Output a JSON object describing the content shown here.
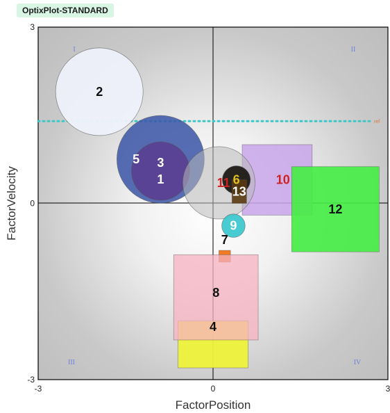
{
  "app": {
    "badge": "OptixPlot-STANDARD"
  },
  "chart_data": {
    "type": "scatter",
    "xlabel": "FactorPosition",
    "ylabel": "FactorVelocity",
    "xlim": [
      -3,
      3
    ],
    "ylim": [
      -3,
      3
    ],
    "x_ticks": [
      "-3",
      "0",
      "3"
    ],
    "y_ticks": [
      "3",
      "0",
      "-3"
    ],
    "quadrants": [
      "I",
      "II",
      "III",
      "IV"
    ],
    "reference_line": {
      "y": 1.4,
      "label": "ref",
      "color": "#3fc7c7"
    },
    "marks": [
      {
        "id": "2",
        "shape": "circle",
        "x": -1.95,
        "y": 1.9,
        "r": 0.75,
        "fill": "#eef1fb",
        "opacity": 0.95,
        "text": "#111111"
      },
      {
        "id": "5",
        "shape": "circle",
        "x": -0.9,
        "y": 0.75,
        "r": 0.75,
        "fill": "#3a55a8",
        "opacity": 0.85,
        "text": "#ffffff",
        "label_dx": -0.42
      },
      {
        "id": "3",
        "shape": "circle",
        "x": -0.9,
        "y": 0.55,
        "r": 0.5,
        "fill": "#5b3c8f",
        "opacity": 0.85,
        "text": "#ffffff",
        "label_dy": 0.14
      },
      {
        "id": "1",
        "shape": "circle",
        "x": -0.9,
        "y": 0.55,
        "r": 0.5,
        "fill": "#5b3c8f",
        "opacity": 0.0,
        "text": "#ffffff",
        "label_dy": -0.14
      },
      {
        "id": "10",
        "shape": "rect",
        "x": 1.1,
        "y": 0.4,
        "w": 1.2,
        "h": 1.2,
        "fill": "#c8a6ea",
        "opacity": 0.85,
        "text": "#cc2222",
        "label_dx": 0.1
      },
      {
        "id": "12",
        "shape": "rect",
        "x": 2.1,
        "y": -0.1,
        "w": 1.5,
        "h": 1.45,
        "fill": "#44ee44",
        "opacity": 0.9,
        "text": "#111111"
      },
      {
        "id": "11",
        "shape": "circle",
        "x": 0.1,
        "y": 0.35,
        "r": 0.62,
        "fill": "#b8b8b8",
        "opacity": 0.55,
        "text": "#cc2222",
        "label_dx": 0.08
      },
      {
        "id": "6",
        "shape": "circle",
        "x": 0.4,
        "y": 0.4,
        "r": 0.24,
        "fill": "#1e1a15",
        "opacity": 0.95,
        "text": "#e0c020"
      },
      {
        "id": "13",
        "shape": "rect",
        "x": 0.45,
        "y": 0.2,
        "w": 0.25,
        "h": 0.4,
        "fill": "#5a3a10",
        "opacity": 0.9,
        "text": "#ffffff"
      },
      {
        "id": "9",
        "shape": "circle",
        "x": 0.35,
        "y": -0.38,
        "r": 0.2,
        "fill": "#3ec8cf",
        "opacity": 0.95,
        "text": "#ffffff"
      },
      {
        "id": "7",
        "shape": "rect",
        "x": 0.2,
        "y": -0.9,
        "w": 0.2,
        "h": 0.2,
        "fill": "#f07a26",
        "opacity": 1.0,
        "text": "#111111",
        "label_dy": 0.28
      },
      {
        "id": "4",
        "shape": "rect",
        "x": 0.0,
        "y": -2.4,
        "w": 1.2,
        "h": 0.8,
        "fill": "#eef23a",
        "opacity": 0.95,
        "text": "#111111",
        "label_dy": 0.3
      },
      {
        "id": "8",
        "shape": "rect",
        "x": 0.05,
        "y": -1.6,
        "w": 1.45,
        "h": 1.45,
        "fill": "#f6b2c0",
        "opacity": 0.75,
        "text": "#111111",
        "label_dy": 0.08
      }
    ]
  }
}
